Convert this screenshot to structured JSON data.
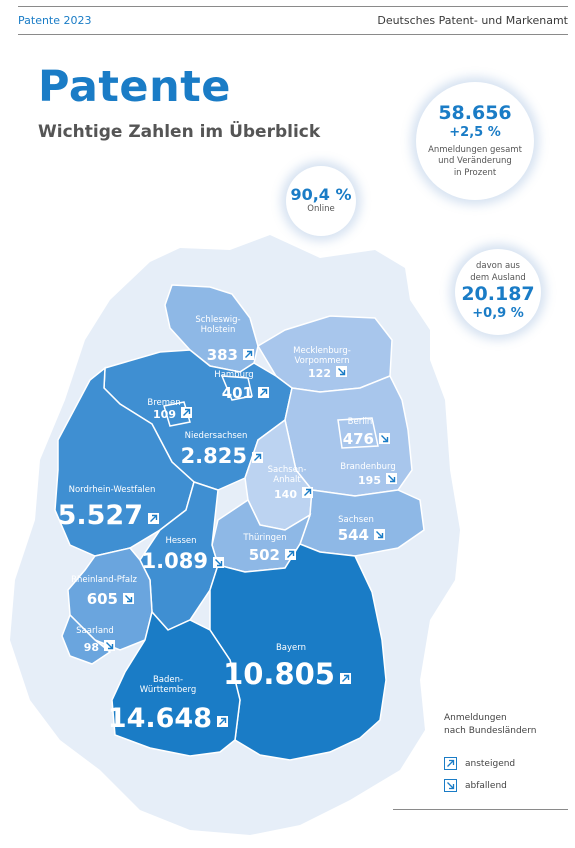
{
  "header": {
    "left": "Patente 2023",
    "right": "Deutsches Patent- und Markenamt"
  },
  "title": "Patente",
  "subtitle": "Wichtige Zahlen im Überblick",
  "stats": {
    "total": {
      "value": "58.656",
      "change": "+2,5 %",
      "caption": [
        "Anmeldungen gesamt",
        "und Veränderung",
        "in Prozent"
      ]
    },
    "online": {
      "value": "90,4 %",
      "caption": "Online"
    },
    "foreign": {
      "caption": [
        "davon aus",
        "dem Ausland"
      ],
      "value": "20.187",
      "change": "+0,9 %"
    }
  },
  "colors": {
    "brand_blue": "#1a7cc6",
    "shade_darkest": "#1a7cc6",
    "shade_dark": "#3f8fd2",
    "shade_mid": "#6aa5de",
    "shade_light": "#8eb8e6",
    "shade_lighter": "#a8c6ec",
    "shade_lightest": "#bcd3f1",
    "background_region": "#e6eef8"
  },
  "states": [
    {
      "key": "sh",
      "name": [
        "Schleswig-",
        "Holstein"
      ],
      "value": "383",
      "trend": "up"
    },
    {
      "key": "hh",
      "name": [
        "Hamburg"
      ],
      "value": "401",
      "trend": "up"
    },
    {
      "key": "mv",
      "name": [
        "Mecklenburg-",
        "Vorpommern"
      ],
      "value": "122",
      "trend": "down"
    },
    {
      "key": "hb",
      "name": [
        "Bremen"
      ],
      "value": "109",
      "trend": "up"
    },
    {
      "key": "be",
      "name": [
        "Berlin"
      ],
      "value": "476",
      "trend": "down"
    },
    {
      "key": "ni",
      "name": [
        "Niedersachsen"
      ],
      "value": "2.825",
      "trend": "up"
    },
    {
      "key": "bb",
      "name": [
        "Brandenburg"
      ],
      "value": "195",
      "trend": "down"
    },
    {
      "key": "st",
      "name": [
        "Sachsen-",
        "Anhalt"
      ],
      "value": "140",
      "trend": "up"
    },
    {
      "key": "nw",
      "name": [
        "Nordrhein-Westfalen"
      ],
      "value": "5.527",
      "trend": "up"
    },
    {
      "key": "sn",
      "name": [
        "Sachsen"
      ],
      "value": "544",
      "trend": "down"
    },
    {
      "key": "he",
      "name": [
        "Hessen"
      ],
      "value": "1.089",
      "trend": "down"
    },
    {
      "key": "th",
      "name": [
        "Thüringen"
      ],
      "value": "502",
      "trend": "up"
    },
    {
      "key": "rp",
      "name": [
        "Rheinland-Pfalz"
      ],
      "value": "605",
      "trend": "down"
    },
    {
      "key": "sl",
      "name": [
        "Saarland"
      ],
      "value": "98",
      "trend": "down"
    },
    {
      "key": "by",
      "name": [
        "Bayern"
      ],
      "value": "10.805",
      "trend": "up"
    },
    {
      "key": "bw",
      "name": [
        "Baden-",
        "Württemberg"
      ],
      "value": "14.648",
      "trend": "up"
    }
  ],
  "legend": {
    "title": [
      "Anmeldungen",
      "nach Bundesländern"
    ],
    "up": "ansteigend",
    "down": "abfallend"
  }
}
